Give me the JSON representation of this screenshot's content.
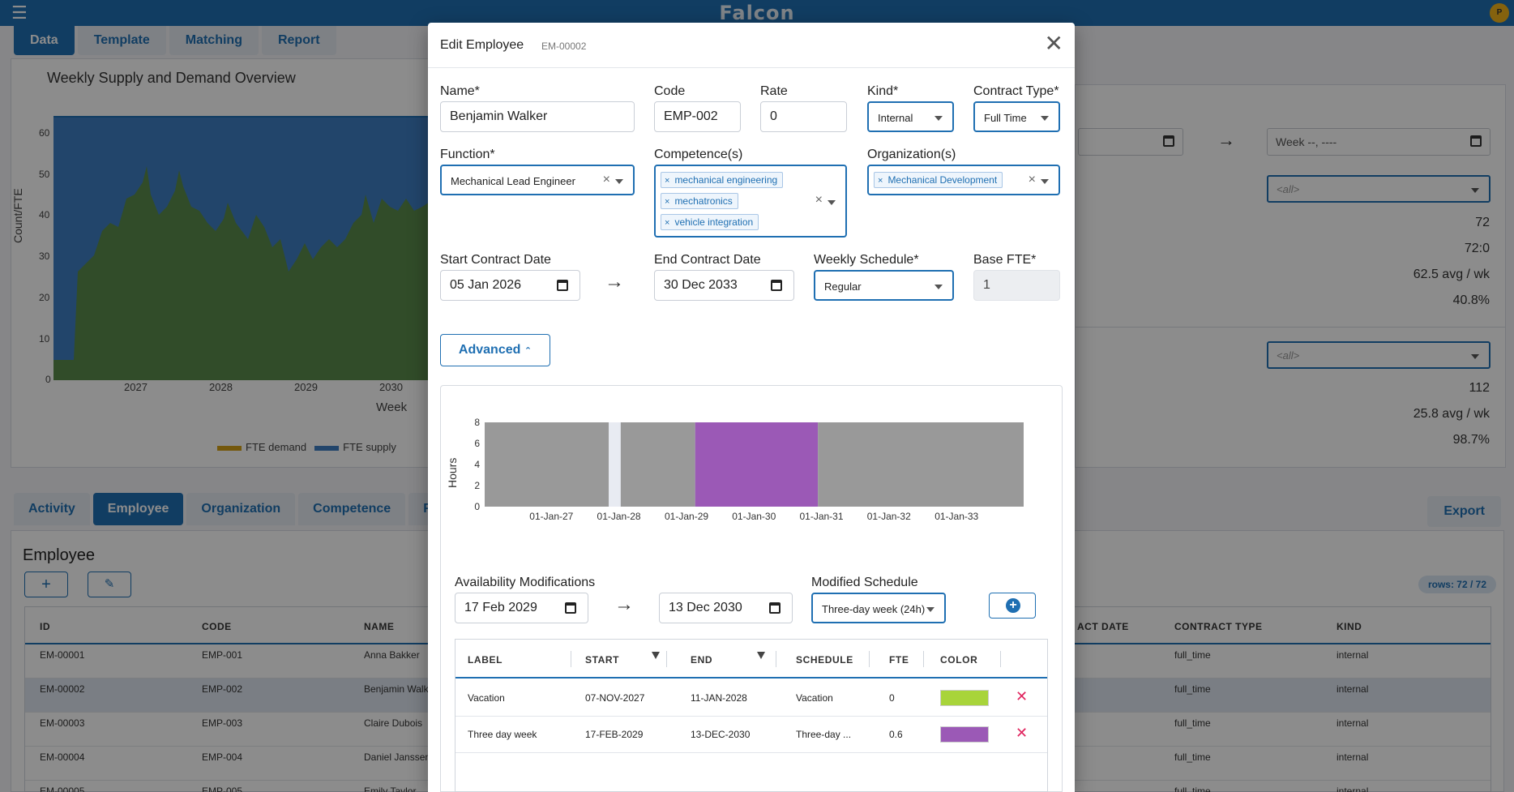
{
  "app": {
    "brand": "Falcon",
    "avatar_initial": "P",
    "top_tabs": [
      "Data",
      "Template",
      "Matching",
      "Report"
    ],
    "chart": {
      "title": "Weekly Supply and Demand Overview",
      "ylabel": "Count/FTE",
      "xlabel": "Week",
      "yticks": [
        "60",
        "50",
        "40",
        "30",
        "20",
        "10",
        "0"
      ],
      "xticks": [
        "2027",
        "2028",
        "2029",
        "2030"
      ],
      "legend": [
        "FTE demand",
        "FTE supply"
      ]
    },
    "right_panel": {
      "week_placeholder": "Week --, ----",
      "all_1": "<all>",
      "vals_1": [
        "72",
        "72:0",
        "62.5 avg / wk",
        "40.8%"
      ],
      "all_2": "<all>",
      "vals_2": [
        "112",
        "25.8 avg / wk",
        "98.7%"
      ]
    },
    "bottom_tabs": [
      "Activity",
      "Employee",
      "Organization",
      "Competence",
      "F"
    ],
    "export_label": "Export",
    "employee_title": "Employee",
    "rows_badge": "rows: 72 / 72",
    "grid_headers": [
      "ID",
      "CODE",
      "NAME",
      "ACT DATE",
      "CONTRACT TYPE",
      "KIND"
    ],
    "grid_rows": [
      {
        "id": "EM-00001",
        "code": "EMP-001",
        "name": "Anna Bakker",
        "contract": "full_time",
        "kind": "internal"
      },
      {
        "id": "EM-00002",
        "code": "EMP-002",
        "name": "Benjamin Walk",
        "contract": "full_time",
        "kind": "internal"
      },
      {
        "id": "EM-00003",
        "code": "EMP-003",
        "name": "Claire Dubois",
        "contract": "full_time",
        "kind": "internal"
      },
      {
        "id": "EM-00004",
        "code": "EMP-004",
        "name": "Daniel Janssen",
        "contract": "full_time",
        "kind": "internal"
      },
      {
        "id": "EM-00005",
        "code": "EMP-005",
        "name": "Emily Taylor",
        "contract": "full_time",
        "kind": "internal"
      }
    ]
  },
  "modal": {
    "title": "Edit Employee",
    "subtitle": "EM-00002",
    "labels": {
      "name": "Name*",
      "code": "Code",
      "rate": "Rate",
      "kind": "Kind*",
      "contract_type": "Contract Type*",
      "function": "Function*",
      "competences": "Competence(s)",
      "organizations": "Organization(s)",
      "start_date": "Start Contract Date",
      "end_date": "End Contract Date",
      "weekly_schedule": "Weekly Schedule*",
      "base_fte": "Base FTE*"
    },
    "values": {
      "name": "Benjamin Walker",
      "code": "EMP-002",
      "rate": "0",
      "kind": "Internal",
      "contract_type": "Full Time",
      "function": "Mechanical Lead Engineer",
      "competences": [
        "mechanical engineering",
        "mechatronics",
        "vehicle integration"
      ],
      "organizations": [
        "Mechanical Development"
      ],
      "start_date": "05 Jan 2026",
      "end_date": "30 Dec 2033",
      "weekly_schedule": "Regular",
      "base_fte": "1"
    },
    "advanced_label": "Advanced",
    "hours_chart": {
      "ylabel": "Hours",
      "yticks": [
        "8",
        "6",
        "4",
        "2",
        "0"
      ],
      "xticks": [
        "01-Jan-27",
        "01-Jan-28",
        "01-Jan-29",
        "01-Jan-30",
        "01-Jan-31",
        "01-Jan-32",
        "01-Jan-33"
      ]
    },
    "availability": {
      "label": "Availability Modifications",
      "start": "17 Feb 2029",
      "end": "13 Dec 2030",
      "schedule_label": "Modified Schedule",
      "schedule_value": "Three-day week (24h)"
    },
    "table": {
      "headers": [
        "LABEL",
        "START",
        "END",
        "SCHEDULE",
        "FTE",
        "COLOR"
      ],
      "rows": [
        {
          "label": "Vacation",
          "start": "07-NOV-2027",
          "end": "11-JAN-2028",
          "schedule": "Vacation",
          "fte": "0",
          "color": "#a8d43a"
        },
        {
          "label": "Three day week",
          "start": "17-FEB-2029",
          "end": "13-DEC-2030",
          "schedule": "Three-day ...",
          "fte": "0.6",
          "color": "#9b59b6"
        }
      ]
    }
  },
  "chart_data": {
    "type": "bar",
    "ylabel": "Hours",
    "ylim": [
      0,
      8
    ],
    "categories": [
      "01-Jan-27",
      "01-Jan-28",
      "01-Jan-29",
      "01-Jan-30",
      "01-Jan-31",
      "01-Jan-32",
      "01-Jan-33"
    ],
    "segments": [
      {
        "from": "2026-01-05",
        "to": "2027-11-07",
        "hours": 8,
        "color": "#999999"
      },
      {
        "from": "2027-11-07",
        "to": "2028-01-11",
        "hours": 0,
        "color": "#a8d43a"
      },
      {
        "from": "2028-01-11",
        "to": "2029-02-17",
        "hours": 8,
        "color": "#999999"
      },
      {
        "from": "2029-02-17",
        "to": "2030-12-13",
        "hours": 8,
        "color": "#9b59b6"
      },
      {
        "from": "2030-12-13",
        "to": "2033-12-30",
        "hours": 8,
        "color": "#999999"
      }
    ]
  }
}
